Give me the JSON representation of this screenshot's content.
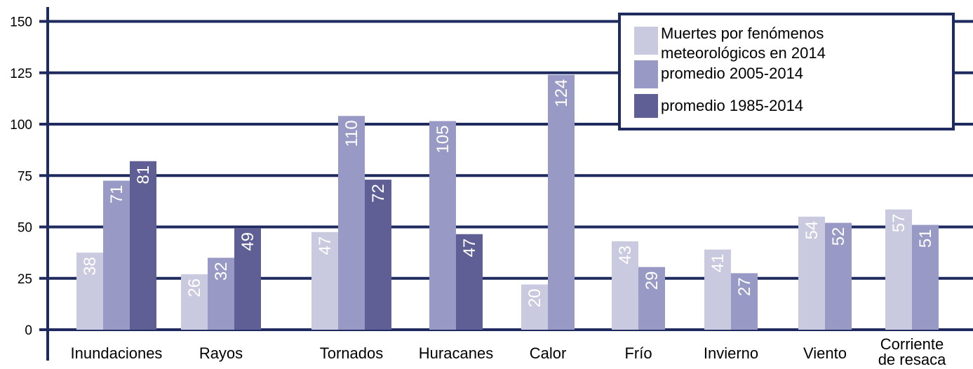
{
  "chart_data": {
    "type": "bar",
    "categories": [
      [
        "Inundaciones"
      ],
      [
        "Rayos"
      ],
      [
        "Tornados"
      ],
      [
        "Huracanes"
      ],
      [
        "Calor"
      ],
      [
        "Frío"
      ],
      [
        "Invierno"
      ],
      [
        "Viento"
      ],
      [
        "Corriente",
        "de resaca"
      ]
    ],
    "series": [
      {
        "name": [
          "Muertes por fenómenos",
          "meteorológicos en 2014"
        ],
        "color": "#c9c9df",
        "values": [
          38,
          26,
          47,
          null,
          20,
          43,
          41,
          54,
          57
        ],
        "bar_heights": [
          37.5,
          27,
          47.5,
          null,
          22,
          43,
          39,
          55,
          58.5
        ]
      },
      {
        "name": [
          "promedio 2005-2014"
        ],
        "color": "#9999c6",
        "values": [
          71,
          32,
          110,
          105,
          124,
          29,
          27,
          52,
          51
        ],
        "bar_heights": [
          72.5,
          35,
          104,
          101.5,
          124,
          30.5,
          27.5,
          52,
          51
        ]
      },
      {
        "name": [
          "promedio 1985-2014"
        ],
        "color": "#5f5f95",
        "values": [
          81,
          49,
          72,
          47,
          null,
          null,
          null,
          null,
          null
        ],
        "bar_heights": [
          82,
          49.5,
          73,
          46.5,
          null,
          null,
          null,
          null,
          null
        ]
      }
    ],
    "yticks": [
      0,
      25,
      50,
      75,
      100,
      125,
      150
    ],
    "ylim": [
      0,
      150
    ],
    "grid": true,
    "grid_color": "#1f2a5e",
    "legend_position": "top-right"
  }
}
